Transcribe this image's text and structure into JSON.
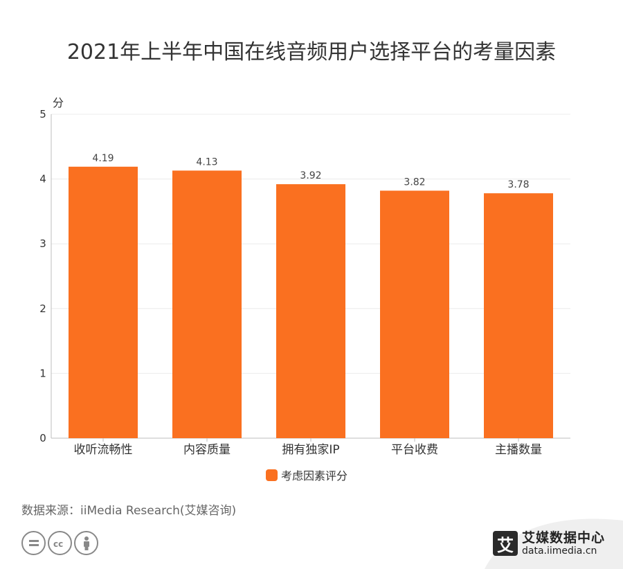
{
  "title": "2021年上半年中国在线音频用户选择平台的考量因素",
  "chart_data": {
    "type": "bar",
    "categories": [
      "收听流畅性",
      "内容质量",
      "拥有独家IP",
      "平台收费",
      "主播数量"
    ],
    "series": [
      {
        "name": "考虑因素评分",
        "values": [
          4.19,
          4.13,
          3.92,
          3.82,
          3.78
        ]
      }
    ],
    "data_labels": [
      "4.19",
      "4.13",
      "3.92",
      "3.82",
      "3.78"
    ],
    "ylabel": "分",
    "ylim": [
      0,
      5
    ],
    "yticks": [
      0,
      1,
      2,
      3,
      4,
      5
    ],
    "grid": true,
    "legend": "bottom-center",
    "bar_color": "#fa7020"
  },
  "source": "数据来源：iiMedia Research(艾媒咨询)",
  "brand": {
    "logo_char": "艾",
    "name": "艾媒数据中心",
    "url": "data.iimedia.cn"
  },
  "license_icons": [
    "equals-icon",
    "cc-icon",
    "person-icon"
  ]
}
